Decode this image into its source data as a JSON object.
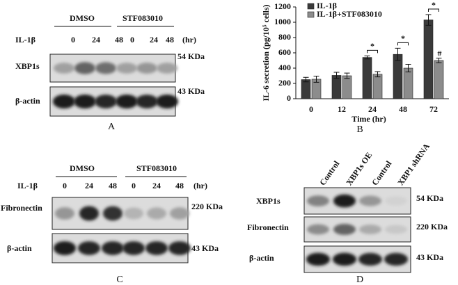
{
  "panels": {
    "A": {
      "label": "A",
      "groups": [
        "DMSO",
        "STF083010"
      ],
      "treatment": "IL-1β",
      "times": [
        "0",
        "24",
        "48",
        "0",
        "24",
        "48"
      ],
      "unit": "(hr)",
      "rows": [
        {
          "name": "XBP1s",
          "size": "54 KDa"
        },
        {
          "name": "β-actin",
          "size": "43 KDa"
        }
      ]
    },
    "C": {
      "label": "C",
      "groups": [
        "DMSO",
        "STF083010"
      ],
      "treatment": "IL-1β",
      "times": [
        "0",
        "24",
        "48",
        "0",
        "24",
        "48"
      ],
      "unit": "(hr)",
      "rows": [
        {
          "name": "Fibronectin",
          "size": "220 KDa"
        },
        {
          "name": "β-actin",
          "size": "43 KDa"
        }
      ]
    },
    "D": {
      "label": "D",
      "lanes": [
        "Control",
        "XBP1s OE",
        "Control",
        "XBP1 shRNA"
      ],
      "rows": [
        {
          "name": "XBP1s",
          "size": "54 KDa"
        },
        {
          "name": "Fibronectin",
          "size": "220 KDa"
        },
        {
          "name": "β-actin",
          "size": "43 KDa"
        }
      ]
    }
  },
  "chart_data": {
    "type": "bar",
    "panel_label": "B",
    "y_label": "IL-6 secretion (pg/10⁵ cells)",
    "x_label": "Time (hr)",
    "categories": [
      "0",
      "12",
      "24",
      "48",
      "72"
    ],
    "series": [
      {
        "name": "IL-1β",
        "color": "#3a3a3a",
        "values": [
          250,
          305,
          540,
          580,
          1030
        ],
        "errors": [
          30,
          40,
          20,
          80,
          70
        ]
      },
      {
        "name": "IL-1β+STF083010",
        "color": "#8c8c8c",
        "values": [
          255,
          300,
          320,
          400,
          500
        ],
        "errors": [
          40,
          35,
          35,
          50,
          30
        ]
      }
    ],
    "ylim": [
      0,
      1200
    ],
    "yticks": [
      0,
      200,
      400,
      600,
      800,
      1000,
      1200
    ],
    "annotations": [
      "*",
      "*",
      "*",
      "#"
    ]
  }
}
